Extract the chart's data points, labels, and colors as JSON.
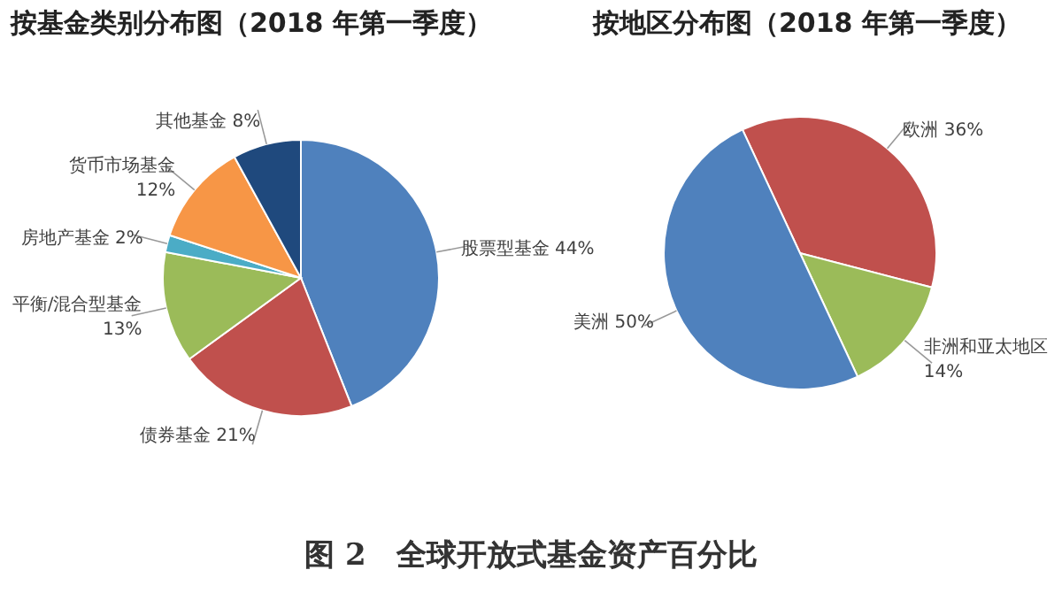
{
  "chart_data": [
    {
      "type": "pie",
      "title": "按基金类别分布图（2018 年第一季度）",
      "categories": [
        "股票型基金",
        "债券基金",
        "平衡/混合型基金",
        "房地产基金",
        "货币市场基金",
        "其他基金"
      ],
      "values": [
        44,
        21,
        13,
        2,
        12,
        8
      ],
      "value_labels": [
        "44%",
        "21%",
        "13%",
        "2%",
        "12%",
        "8%"
      ],
      "colors": [
        "#4f81bd",
        "#c0504d",
        "#9bbb59",
        "#4bacc6",
        "#f79646",
        "#1f497d"
      ],
      "annotations": [
        "图 2　全球开放式基金资产百分比"
      ]
    },
    {
      "type": "pie",
      "title": "按地区分布图（2018 年第一季度）",
      "categories": [
        "欧洲",
        "非洲和亚太地区",
        "美洲"
      ],
      "values": [
        36,
        14,
        50
      ],
      "value_labels": [
        "36%",
        "14%",
        "50%"
      ],
      "colors": [
        "#c0504d",
        "#9bbb59",
        "#4f81bd"
      ]
    }
  ]
}
